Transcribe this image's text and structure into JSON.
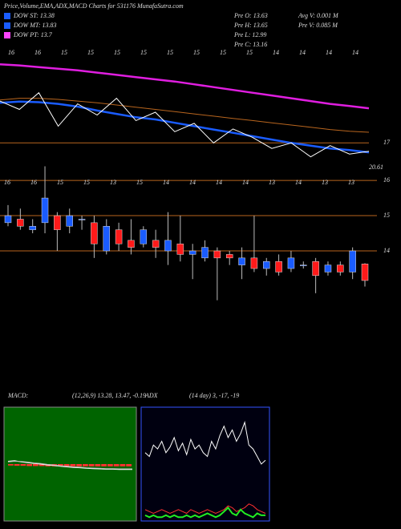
{
  "header": {
    "title": "Price,Volume,EMA,ADX,MACD Charts for 531176 MunafaSutra.com"
  },
  "legend": [
    {
      "label": "DOW ST: 13.38",
      "color": "#1a5cff"
    },
    {
      "label": "DOW MT: 13.83",
      "color": "#1a5cff"
    },
    {
      "label": "DOW PT: 13.7",
      "color": "#ff44ff"
    }
  ],
  "stats": [
    "Pre  O: 13.63",
    "Pre  H: 13.65",
    "Pre  L: 12.99",
    "Pre  C: 13.16",
    "Avg V: 0.001 M",
    "Pre  V: 0.085 M"
  ],
  "chart_data": [
    {
      "type": "line",
      "ylim": [
        16.4,
        18.7
      ],
      "yticks": [
        17
      ],
      "annotations": [
        "20.61"
      ],
      "xlabels": [
        "16",
        "16",
        "15",
        "15",
        "15",
        "15",
        "15",
        "15",
        "15",
        "15",
        "14",
        "14",
        "14",
        "14"
      ],
      "series": [
        {
          "color": "#e01ee0",
          "width": 2.5,
          "values": [
            18.41,
            18.39,
            18.36,
            18.33,
            18.3,
            18.26,
            18.22,
            18.18,
            18.14,
            18.1,
            18.05,
            18.0,
            17.95,
            17.9,
            17.85,
            17.8,
            17.75,
            17.7,
            17.66,
            17.62
          ]
        },
        {
          "color": "#b8651e",
          "width": 1,
          "values": [
            17.77,
            17.8,
            17.8,
            17.78,
            17.75,
            17.72,
            17.68,
            17.64,
            17.6,
            17.56,
            17.52,
            17.48,
            17.44,
            17.4,
            17.36,
            17.32,
            17.28,
            17.24,
            17.21,
            17.19
          ]
        },
        {
          "color": "#1a5cff",
          "width": 2.5,
          "values": [
            17.72,
            17.74,
            17.73,
            17.7,
            17.65,
            17.58,
            17.52,
            17.46,
            17.42,
            17.36,
            17.3,
            17.24,
            17.18,
            17.12,
            17.06,
            17.0,
            16.95,
            16.9,
            16.87,
            16.83
          ]
        },
        {
          "color": "#ffffff",
          "width": 1,
          "values": [
            17.75,
            17.6,
            17.9,
            17.3,
            17.7,
            17.5,
            17.8,
            17.4,
            17.55,
            17.2,
            17.35,
            17.0,
            17.25,
            17.1,
            16.9,
            17.0,
            16.75,
            16.95,
            16.8,
            16.85
          ]
        }
      ]
    },
    {
      "type": "candlestick",
      "ylim": [
        12.25,
        16.57
      ],
      "yticks": [
        16,
        15,
        14
      ],
      "grid": true,
      "up_color": "#1a5cff",
      "down_color": "#ff1a1a",
      "xlabels": [
        "16",
        "16",
        "15",
        "15",
        "13",
        "15",
        "14",
        "14",
        "14",
        "14",
        "13",
        "14",
        "13",
        "13"
      ],
      "open": [
        14.8,
        14.9,
        14.6,
        14.8,
        15.0,
        14.7,
        14.9,
        14.8,
        14.0,
        14.6,
        14.3,
        14.2,
        14.3,
        14.0,
        14.2,
        13.9,
        13.8,
        14.0,
        13.9,
        13.6,
        13.8,
        13.5,
        13.7,
        13.5,
        13.6,
        13.7,
        13.4,
        13.6,
        13.4,
        13.63
      ],
      "high": [
        15.3,
        15.2,
        14.9,
        16.4,
        15.1,
        15.2,
        15.0,
        15.0,
        14.9,
        14.8,
        14.9,
        14.7,
        14.6,
        15.1,
        15.0,
        14.2,
        14.3,
        14.1,
        14.0,
        14.1,
        15.0,
        13.8,
        13.9,
        14.0,
        13.7,
        13.8,
        13.7,
        13.7,
        14.1,
        13.65
      ],
      "low": [
        14.7,
        14.6,
        14.5,
        14.5,
        14.0,
        14.5,
        14.6,
        13.8,
        13.9,
        14.0,
        13.9,
        14.1,
        13.8,
        13.6,
        13.7,
        13.2,
        13.7,
        12.6,
        13.6,
        13.2,
        13.4,
        13.3,
        13.3,
        13.4,
        13.5,
        12.8,
        13.3,
        13.3,
        13.2,
        12.99
      ],
      "close": [
        15.0,
        14.7,
        14.7,
        15.5,
        14.6,
        15.0,
        14.9,
        14.2,
        14.7,
        14.2,
        14.1,
        14.6,
        14.1,
        14.3,
        13.9,
        14.0,
        14.1,
        13.8,
        13.8,
        13.8,
        13.5,
        13.7,
        13.4,
        13.8,
        13.6,
        13.3,
        13.6,
        13.4,
        14.0,
        13.16
      ]
    },
    {
      "type": "line",
      "title": "MACD:",
      "subtitle": "(12,26,9) 13.28, 13.47, -0.19",
      "ylim": [
        -2,
        2
      ],
      "background": "#006400",
      "bars": {
        "color": "#ff3030",
        "values": [
          -0.05,
          -0.06,
          -0.06,
          -0.07,
          -0.07,
          -0.07,
          -0.08,
          -0.08,
          -0.08,
          -0.08,
          -0.08,
          -0.08,
          -0.08,
          -0.08,
          -0.08,
          -0.08,
          -0.08,
          -0.08,
          -0.08,
          -0.08
        ]
      },
      "series": [
        {
          "color": "#ffffff",
          "width": 1,
          "values": [
            0.1,
            0.12,
            0.08,
            0.05,
            0.02,
            0.0,
            -0.03,
            -0.05,
            -0.08,
            -0.1,
            -0.12,
            -0.13,
            -0.15,
            -0.16,
            -0.17,
            -0.18,
            -0.18,
            -0.19,
            -0.19,
            -0.19
          ]
        },
        {
          "color": "#bbbbbb",
          "width": 1,
          "values": [
            0.08,
            0.1,
            0.09,
            0.07,
            0.04,
            0.02,
            -0.01,
            -0.03,
            -0.06,
            -0.08,
            -0.1,
            -0.11,
            -0.13,
            -0.14,
            -0.15,
            -0.16,
            -0.16,
            -0.17,
            -0.17,
            -0.17
          ]
        }
      ]
    },
    {
      "type": "line",
      "title": "ADX",
      "subtitle": "(14  day) 3, -17, -19",
      "ylim": [
        0,
        60
      ],
      "background": "#000010",
      "series": [
        {
          "color": "#ffffff",
          "width": 1,
          "values": [
            36,
            34,
            40,
            38,
            42,
            36,
            39,
            44,
            37,
            41,
            35,
            43,
            38,
            40,
            36,
            34,
            42,
            38,
            45,
            50,
            44,
            48,
            42,
            46,
            52,
            40,
            38,
            34,
            30,
            32
          ]
        },
        {
          "color": "#ff3030",
          "width": 1,
          "values": [
            6,
            5,
            4,
            5,
            6,
            5,
            4,
            5,
            6,
            5,
            4,
            6,
            5,
            4,
            5,
            6,
            5,
            4,
            5,
            6,
            8,
            7,
            5,
            6,
            7,
            9,
            8,
            6,
            5,
            4
          ]
        },
        {
          "color": "#22ee22",
          "width": 2,
          "values": [
            3,
            2,
            3,
            2,
            2,
            3,
            2,
            3,
            2,
            2,
            3,
            2,
            3,
            2,
            3,
            4,
            3,
            2,
            3,
            5,
            7,
            4,
            3,
            6,
            4,
            3,
            2,
            4,
            3,
            3
          ]
        }
      ]
    }
  ]
}
